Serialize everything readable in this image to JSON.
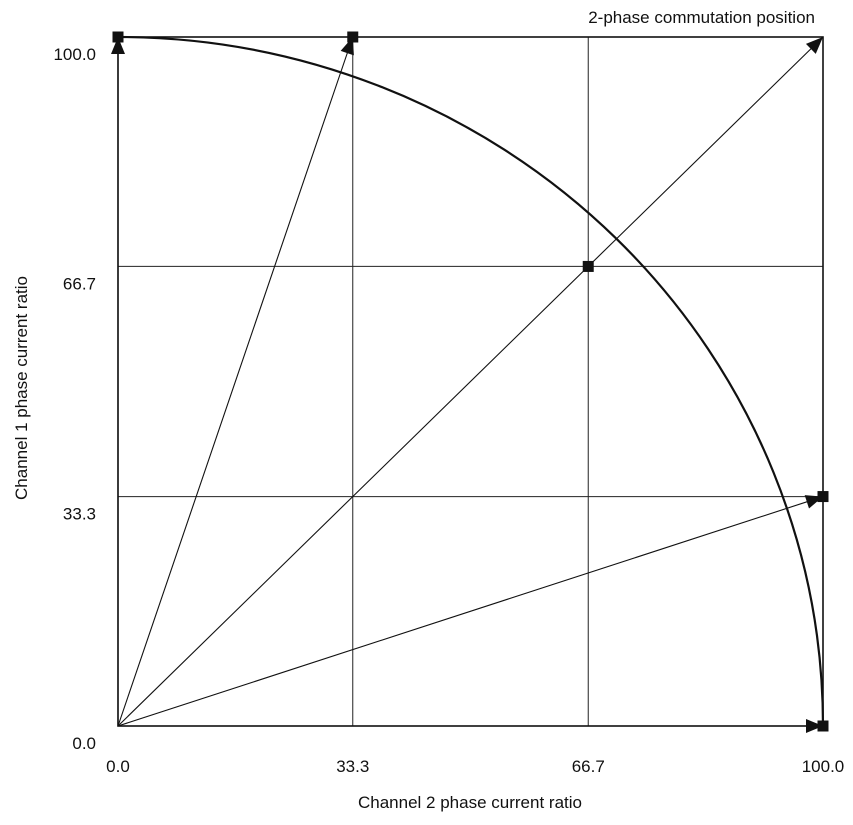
{
  "chart_data": {
    "type": "scatter",
    "title": "",
    "annotation": "2-phase commutation position",
    "xlabel": "Channel 2 phase current ratio",
    "ylabel": "Channel 1 phase current ratio",
    "xlim": [
      0,
      100
    ],
    "ylim": [
      0,
      100
    ],
    "xticks": [
      "0.0",
      "33.3",
      "66.7",
      "100.0"
    ],
    "yticks": [
      "0.0",
      "33.3",
      "66.7",
      "100.0"
    ],
    "xtick_values": [
      0,
      33.3,
      66.7,
      100
    ],
    "ytick_values": [
      0,
      33.3,
      66.7,
      100
    ],
    "grid": true,
    "square_points": [
      {
        "x": 0,
        "y": 100
      },
      {
        "x": 33.3,
        "y": 100
      },
      {
        "x": 66.7,
        "y": 66.7
      },
      {
        "x": 100,
        "y": 33.3
      },
      {
        "x": 100,
        "y": 0
      }
    ],
    "vectors": [
      {
        "x": 0,
        "y": 100
      },
      {
        "x": 33.3,
        "y": 100
      },
      {
        "x": 100,
        "y": 100
      },
      {
        "x": 100,
        "y": 33.3
      },
      {
        "x": 100,
        "y": 0
      }
    ],
    "arc": {
      "center": [
        0,
        0
      ],
      "radius": 100,
      "type": "quarter-circle"
    },
    "colors": {
      "ink": "#111111",
      "background": "#ffffff"
    }
  }
}
